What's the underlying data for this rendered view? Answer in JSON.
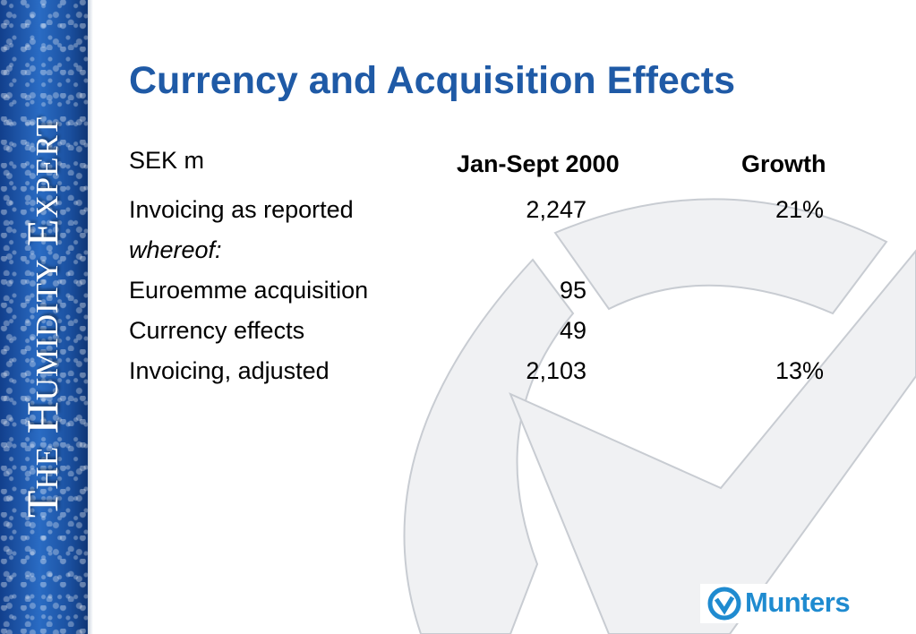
{
  "sidebar": {
    "tagline": "The Humidity Expert"
  },
  "slide": {
    "title": "Currency and Acquisition Effects",
    "unit_label": "SEK m",
    "col_period": "Jan-Sept 2000",
    "col_growth": "Growth"
  },
  "rows": [
    {
      "label": "Invoicing as reported",
      "value": "2,247",
      "growth": "21%"
    },
    {
      "label": "whereof:",
      "value": "",
      "growth": ""
    },
    {
      "label": "Euroemme acquisition",
      "value": "95",
      "growth": ""
    },
    {
      "label": "Currency effects",
      "value": "49",
      "growth": ""
    },
    {
      "label": "Invoicing, adjusted",
      "value": "2,103",
      "growth": "13%"
    }
  ],
  "logo": {
    "name": "Munters",
    "brand_color": "#1f8bd0"
  },
  "colors": {
    "title": "#1f5aa6",
    "sidebar": "#1a4f9e"
  }
}
